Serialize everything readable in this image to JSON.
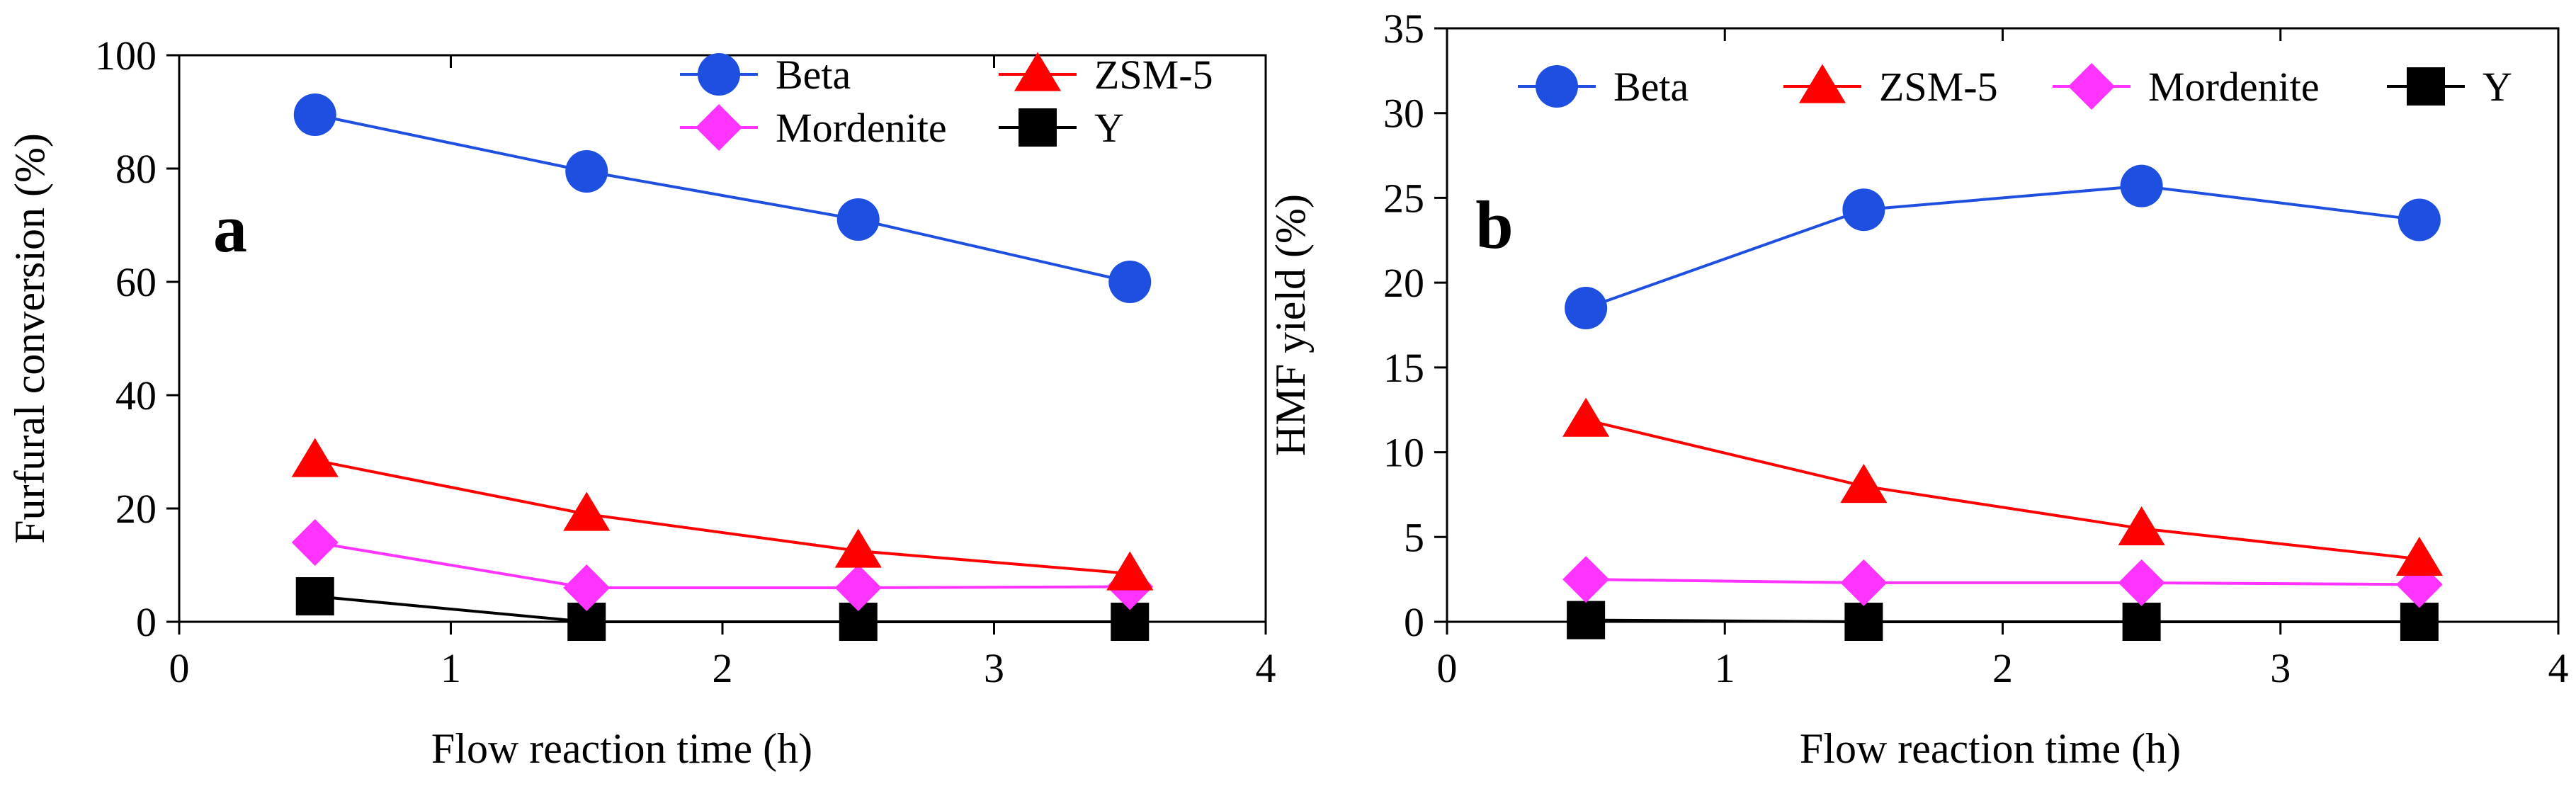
{
  "chart_data": [
    {
      "type": "line",
      "panel_label": "a",
      "xlabel": "Flow reaction time (h)",
      "ylabel": "Furfural conversion (%)",
      "xlim": [
        0,
        4
      ],
      "ylim": [
        0,
        100
      ],
      "x_ticks": [
        0,
        1,
        2,
        3,
        4
      ],
      "y_ticks": [
        0,
        20,
        40,
        60,
        80,
        100
      ],
      "x": [
        0.5,
        1.5,
        2.5,
        3.5
      ],
      "legend_columns": 2,
      "series": [
        {
          "name": "Beta",
          "color": "#1f4fe0",
          "marker": "circle",
          "x": [
            0.5,
            1.5,
            2.5,
            3.5
          ],
          "values": [
            89.5,
            79.5,
            71,
            60
          ]
        },
        {
          "name": "ZSM-5",
          "color": "#ff0000",
          "marker": "triangle",
          "x": [
            0.5,
            1.5,
            2.5,
            3.5
          ],
          "values": [
            28.5,
            19,
            12.5,
            8.5
          ]
        },
        {
          "name": "Mordenite",
          "color": "#ff33ff",
          "marker": "diamond",
          "x": [
            0.5,
            1.5,
            2.5,
            3.5
          ],
          "values": [
            14,
            6,
            6,
            6.2
          ]
        },
        {
          "name": "Y",
          "color": "#000000",
          "marker": "square",
          "x": [
            0.5,
            1.5,
            2.5,
            3.5
          ],
          "values": [
            4.5,
            0,
            0,
            0
          ]
        }
      ]
    },
    {
      "type": "line",
      "panel_label": "b",
      "xlabel": "Flow reaction time (h)",
      "ylabel": "HMF yield (%)",
      "xlim": [
        0,
        4
      ],
      "ylim": [
        0,
        35
      ],
      "x_ticks": [
        0,
        1,
        2,
        3,
        4
      ],
      "y_ticks": [
        0,
        5,
        10,
        15,
        20,
        25,
        30,
        35
      ],
      "x": [
        0.5,
        1.5,
        2.5,
        3.5
      ],
      "legend_columns": 4,
      "series": [
        {
          "name": "Beta",
          "color": "#1f4fe0",
          "marker": "circle",
          "x": [
            0.5,
            1.5,
            2.5,
            3.5
          ],
          "values": [
            18.5,
            24.3,
            25.7,
            23.7
          ]
        },
        {
          "name": "ZSM-5",
          "color": "#ff0000",
          "marker": "triangle",
          "x": [
            0.5,
            1.5,
            2.5,
            3.5
          ],
          "values": [
            11.9,
            8.0,
            5.5,
            3.7
          ]
        },
        {
          "name": "Mordenite",
          "color": "#ff33ff",
          "marker": "diamond",
          "x": [
            0.5,
            1.5,
            2.5,
            3.5
          ],
          "values": [
            2.5,
            2.3,
            2.3,
            2.2
          ]
        },
        {
          "name": "Y",
          "color": "#000000",
          "marker": "square",
          "x": [
            0.5,
            1.5,
            2.5,
            3.5
          ],
          "values": [
            0.1,
            0,
            0,
            0
          ]
        }
      ]
    }
  ]
}
